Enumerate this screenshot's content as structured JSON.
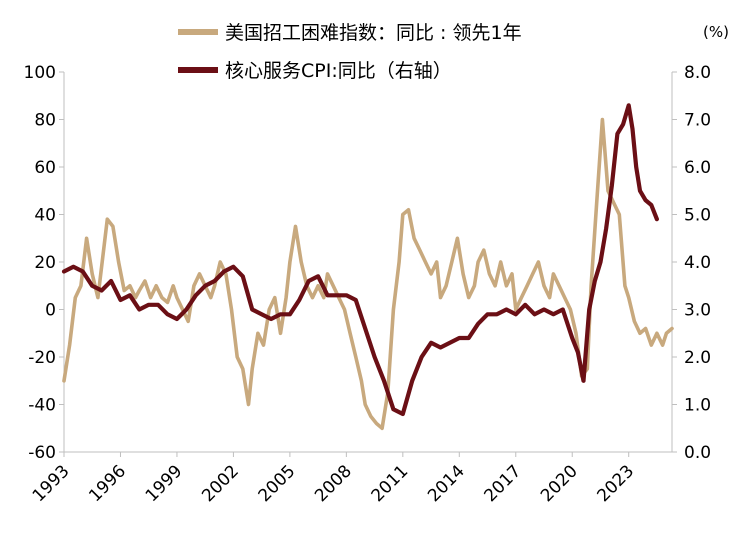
{
  "chart_data": {
    "type": "line",
    "unit_label": "(%)",
    "x_tick_labels": [
      "1993",
      "1996",
      "1999",
      "2002",
      "2005",
      "2008",
      "2011",
      "2014",
      "2017",
      "2020",
      "2023"
    ],
    "left_axis": {
      "ylim": [
        -60,
        100
      ],
      "ticks": [
        "-60",
        "-40",
        "-20",
        "0",
        "20",
        "40",
        "60",
        "80",
        "100"
      ]
    },
    "right_axis": {
      "ylim": [
        0.0,
        8.0
      ],
      "ticks": [
        "0.0",
        "1.0",
        "2.0",
        "3.0",
        "4.0",
        "5.0",
        "6.0",
        "7.0",
        "8.0"
      ]
    },
    "legend_placement": "top",
    "series": [
      {
        "name": "美国招工困难指数：同比 : 领先1年",
        "axis": "left",
        "color": "#c8a97e",
        "x": [
          1993.0,
          1993.3,
          1993.6,
          1993.9,
          1994.2,
          1994.5,
          1994.8,
          1995.0,
          1995.3,
          1995.6,
          1995.9,
          1996.2,
          1996.5,
          1996.8,
          1997.0,
          1997.3,
          1997.6,
          1997.9,
          1998.2,
          1998.5,
          1998.8,
          1999.0,
          1999.3,
          1999.6,
          1999.9,
          2000.2,
          2000.5,
          2000.8,
          2001.0,
          2001.3,
          2001.6,
          2001.9,
          2002.2,
          2002.5,
          2002.8,
          2003.0,
          2003.3,
          2003.6,
          2003.9,
          2004.2,
          2004.5,
          2004.8,
          2005.0,
          2005.3,
          2005.6,
          2005.9,
          2006.2,
          2006.5,
          2006.8,
          2007.0,
          2007.3,
          2007.6,
          2007.9,
          2008.2,
          2008.5,
          2008.8,
          2009.0,
          2009.3,
          2009.6,
          2009.9,
          2010.2,
          2010.5,
          2010.8,
          2011.0,
          2011.3,
          2011.6,
          2011.9,
          2012.2,
          2012.5,
          2012.8,
          2013.0,
          2013.3,
          2013.6,
          2013.9,
          2014.2,
          2014.5,
          2014.8,
          2015.0,
          2015.3,
          2015.6,
          2015.9,
          2016.2,
          2016.5,
          2016.8,
          2017.0,
          2017.3,
          2017.6,
          2017.9,
          2018.2,
          2018.5,
          2018.8,
          2019.0,
          2019.3,
          2019.6,
          2019.9,
          2020.2,
          2020.5,
          2020.8,
          2021.0,
          2021.3,
          2021.6,
          2021.9,
          2022.2,
          2022.5,
          2022.8,
          2023.0,
          2023.3,
          2023.6,
          2023.9,
          2024.2,
          2024.5,
          2024.8,
          2025.0,
          2025.3
        ],
        "values": [
          -30,
          -15,
          5,
          10,
          30,
          15,
          5,
          18,
          38,
          35,
          20,
          8,
          10,
          5,
          8,
          12,
          5,
          10,
          5,
          3,
          10,
          5,
          0,
          -5,
          10,
          15,
          10,
          5,
          10,
          20,
          15,
          0,
          -20,
          -25,
          -40,
          -25,
          -10,
          -15,
          0,
          5,
          -10,
          5,
          20,
          35,
          20,
          10,
          5,
          10,
          5,
          15,
          10,
          5,
          0,
          -10,
          -20,
          -30,
          -40,
          -45,
          -48,
          -50,
          -35,
          0,
          20,
          40,
          42,
          30,
          25,
          20,
          15,
          20,
          5,
          10,
          20,
          30,
          15,
          5,
          10,
          20,
          25,
          15,
          10,
          20,
          10,
          15,
          0,
          5,
          10,
          15,
          20,
          10,
          5,
          15,
          10,
          5,
          0,
          -10,
          -28,
          -25,
          10,
          45,
          80,
          50,
          45,
          40,
          10,
          5,
          -5,
          -10,
          -8,
          -15,
          -10,
          -15,
          -10,
          -8
        ]
      },
      {
        "name": "核心服务CPI:同比（右轴）",
        "axis": "right",
        "color": "#6b0f15",
        "x": [
          1993.0,
          1993.5,
          1994.0,
          1994.5,
          1995.0,
          1995.5,
          1996.0,
          1996.5,
          1997.0,
          1997.5,
          1998.0,
          1998.5,
          1999.0,
          1999.5,
          2000.0,
          2000.5,
          2001.0,
          2001.5,
          2002.0,
          2002.5,
          2003.0,
          2003.5,
          2004.0,
          2004.5,
          2005.0,
          2005.5,
          2006.0,
          2006.5,
          2007.0,
          2007.5,
          2008.0,
          2008.5,
          2009.0,
          2009.5,
          2010.0,
          2010.5,
          2011.0,
          2011.5,
          2012.0,
          2012.5,
          2013.0,
          2013.5,
          2014.0,
          2014.5,
          2015.0,
          2015.5,
          2016.0,
          2016.5,
          2017.0,
          2017.5,
          2018.0,
          2018.5,
          2019.0,
          2019.5,
          2020.0,
          2020.3,
          2020.6,
          2020.9,
          2021.2,
          2021.5,
          2021.8,
          2022.1,
          2022.4,
          2022.7,
          2023.0,
          2023.2,
          2023.4,
          2023.6,
          2023.9,
          2024.2,
          2024.5
        ],
        "values": [
          3.8,
          3.9,
          3.8,
          3.5,
          3.4,
          3.6,
          3.2,
          3.3,
          3.0,
          3.1,
          3.1,
          2.9,
          2.8,
          3.0,
          3.3,
          3.5,
          3.6,
          3.8,
          3.9,
          3.7,
          3.0,
          2.9,
          2.8,
          2.9,
          2.9,
          3.2,
          3.6,
          3.7,
          3.3,
          3.3,
          3.3,
          3.2,
          2.6,
          2.0,
          1.5,
          0.9,
          0.8,
          1.5,
          2.0,
          2.3,
          2.2,
          2.3,
          2.4,
          2.4,
          2.7,
          2.9,
          2.9,
          3.0,
          2.9,
          3.1,
          2.9,
          3.0,
          2.9,
          3.0,
          2.4,
          2.1,
          1.5,
          3.0,
          3.6,
          4.0,
          4.7,
          5.6,
          6.7,
          6.9,
          7.3,
          6.8,
          6.0,
          5.5,
          5.3,
          5.2,
          4.9
        ]
      }
    ]
  }
}
